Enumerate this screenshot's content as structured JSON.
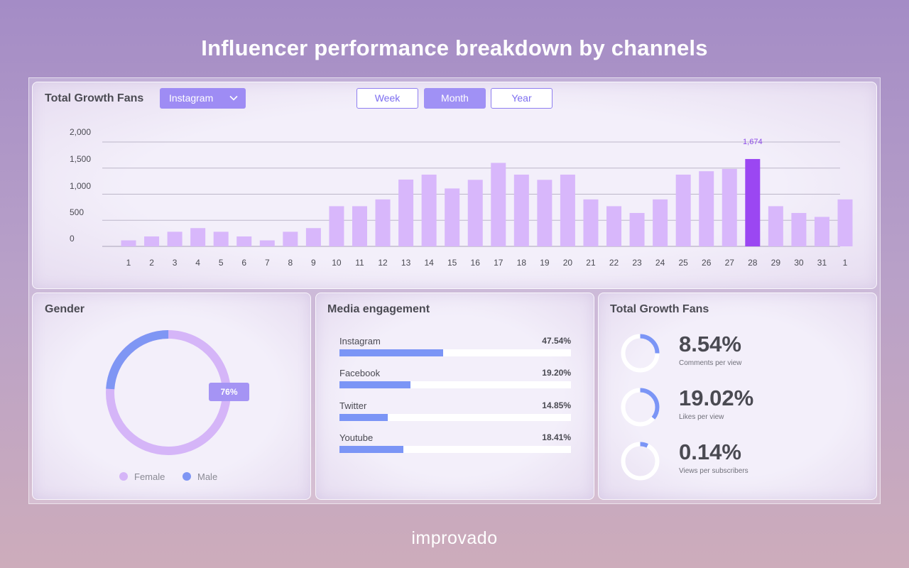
{
  "page": {
    "title": "Influencer performance breakdown by channels",
    "brand": "improvado"
  },
  "growth": {
    "title": "Total Growth Fans",
    "channel": "Instagram",
    "periods": [
      "Week",
      "Month",
      "Year"
    ],
    "active_period": "Month"
  },
  "chart_data": {
    "type": "bar",
    "title": "Total Growth Fans",
    "xlabel": "",
    "ylabel": "",
    "ylim": [
      0,
      2000
    ],
    "yticks": [
      "2,000",
      "1,500",
      "1,000",
      "500",
      "0"
    ],
    "categories": [
      "1",
      "2",
      "3",
      "4",
      "5",
      "6",
      "7",
      "8",
      "9",
      "10",
      "11",
      "12",
      "13",
      "14",
      "15",
      "16",
      "17",
      "18",
      "19",
      "20",
      "21",
      "22",
      "23",
      "24",
      "25",
      "26",
      "27",
      "28",
      "29",
      "30",
      "31",
      "1"
    ],
    "values": [
      115,
      190,
      280,
      350,
      280,
      190,
      115,
      280,
      350,
      770,
      770,
      900,
      1280,
      1375,
      1110,
      1275,
      1600,
      1375,
      1275,
      1375,
      900,
      770,
      640,
      900,
      1375,
      1440,
      1485,
      1674,
      770,
      640,
      565,
      900
    ],
    "highlight_index": 27,
    "highlight_label": "1,674",
    "grid": true,
    "bar_color": "#d8b7fb",
    "highlight_color": "#9b47f2"
  },
  "gender": {
    "title": "Gender",
    "badge": "76%",
    "female_share": 0.76,
    "legend": [
      {
        "label": "Female",
        "color": "#d5b5f8"
      },
      {
        "label": "Male",
        "color": "#7f96f4"
      }
    ]
  },
  "media": {
    "title": "Media engagement",
    "items": [
      {
        "label": "Instagram",
        "value": "47.54%",
        "fraction": 0.4475
      },
      {
        "label": "Facebook",
        "value": "19.20%",
        "fraction": 0.307
      },
      {
        "label": "Twitter",
        "value": "14.85%",
        "fraction": 0.208
      },
      {
        "label": "Youtube",
        "value": "18.41%",
        "fraction": 0.276
      }
    ]
  },
  "stats": {
    "title": "Total Growth Fans",
    "items": [
      {
        "value": "8.54%",
        "label": "Comments per view",
        "ring_fraction": 0.25
      },
      {
        "value": "19.02%",
        "label": "Likes per view",
        "ring_fraction": 0.36
      },
      {
        "value": "0.14%",
        "label": "Views per subscribers",
        "ring_fraction": 0.07
      }
    ]
  },
  "colors": {
    "accent": "#9e8cf4",
    "blue": "#7b95f6",
    "ring_track": "#ffffff"
  }
}
